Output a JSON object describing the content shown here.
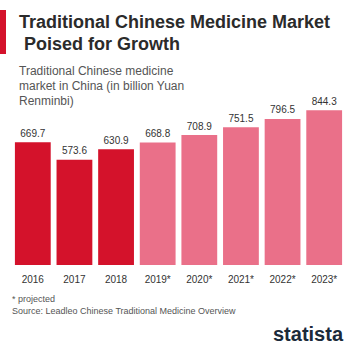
{
  "chart_data": {
    "type": "bar",
    "title": "Traditional Chinese Medicine Market Poised for Growth",
    "subtitle": "Traditional Chinese medicine market in China (in billion Yuan Renminbi)",
    "categories": [
      "2016",
      "2017",
      "2018",
      "2019*",
      "2020*",
      "2021*",
      "2022*",
      "2023*"
    ],
    "values": [
      669.7,
      573.6,
      630.9,
      668.8,
      708.9,
      751.5,
      796.5,
      844.3
    ],
    "colors": [
      "#d4122b",
      "#d4122b",
      "#d4122b",
      "#ea7089",
      "#ea7089",
      "#ea7089",
      "#ea7089",
      "#ea7089"
    ],
    "ylim": [
      0,
      900
    ],
    "data_labels": true,
    "tick_labels": "x",
    "grid": false,
    "footnote": "* projected",
    "source": "Source: Leadleo Chinese Traditional Medicine Overview",
    "logo": "statista"
  }
}
